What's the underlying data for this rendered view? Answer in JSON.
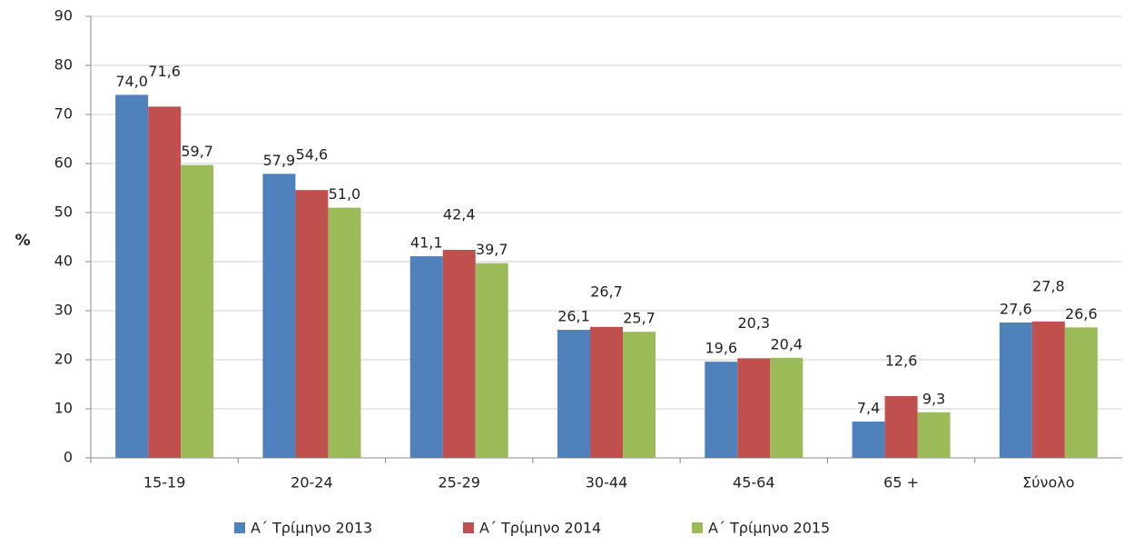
{
  "chart_data": {
    "type": "bar",
    "y_label": "%",
    "categories": [
      "15-19",
      "20-24",
      "25-29",
      "30-44",
      "45-64",
      "65 +",
      "Σύνολο"
    ],
    "series": [
      {
        "name": "Α΄ Τρίμηνο 2013",
        "color": "#4f81bd",
        "values": [
          74.0,
          57.9,
          41.1,
          26.1,
          19.6,
          7.4,
          27.6
        ],
        "value_labels": [
          "74,0",
          "57,9",
          "41,1",
          "26,1",
          "19,6",
          "7,4",
          "27,6"
        ]
      },
      {
        "name": "Α΄ Τρίμηνο 2014",
        "color": "#c0504d",
        "values": [
          71.6,
          54.6,
          42.4,
          26.7,
          20.3,
          12.6,
          27.8
        ],
        "value_labels": [
          "71,6",
          "54,6",
          "42,4",
          "26,7",
          "20,3",
          "12,6",
          "27,8"
        ]
      },
      {
        "name": "Α΄ Τρίμηνο 2015",
        "color": "#9bbb59",
        "values": [
          59.7,
          51.0,
          39.7,
          25.7,
          20.4,
          9.3,
          26.6
        ],
        "value_labels": [
          "59,7",
          "51,0",
          "39,7",
          "25,7",
          "20,4",
          "9,3",
          "26,6"
        ]
      }
    ],
    "ylim": [
      0,
      90
    ],
    "yticks": [
      0,
      10,
      20,
      30,
      40,
      50,
      60,
      70,
      80,
      90
    ],
    "grid": true,
    "legend": "bottom"
  }
}
